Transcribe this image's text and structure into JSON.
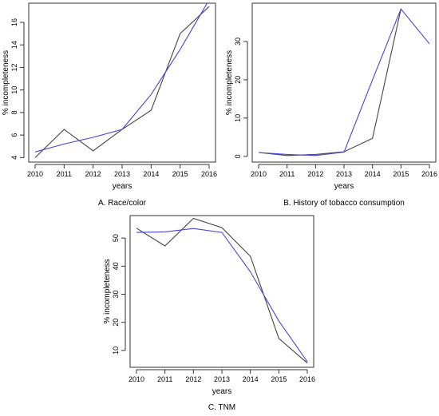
{
  "chart_data": [
    {
      "panel": "A",
      "type": "line",
      "caption": "A. Race/color",
      "xlabel": "years",
      "ylabel": "% incompleteness",
      "x": [
        2010,
        2011,
        2012,
        2013,
        2014,
        2015,
        2016
      ],
      "xticks": [
        "2010",
        "2011",
        "2012",
        "2013",
        "2014",
        "2015",
        "2016"
      ],
      "yticks": [
        "4",
        "6",
        "8",
        "10",
        "12",
        "14",
        "16"
      ],
      "ylim": [
        3.6,
        17.7
      ],
      "series": [
        {
          "color": "#444444",
          "values": [
            4.0,
            6.5,
            4.6,
            6.5,
            8.2,
            15.0,
            17.4
          ]
        },
        {
          "color": "#4444dd",
          "values": [
            4.5,
            5.2,
            5.8,
            6.5,
            9.6,
            13.6,
            18.0
          ]
        }
      ]
    },
    {
      "panel": "B",
      "type": "line",
      "caption": "B. History of tobacco consumption",
      "xlabel": "years",
      "ylabel": "% incompleteness",
      "x": [
        2010,
        2011,
        2012,
        2013,
        2014,
        2015,
        2016
      ],
      "xticks": [
        "2010",
        "2011",
        "2012",
        "2013",
        "2014",
        "2015",
        "2016"
      ],
      "yticks": [
        "0",
        "10",
        "20",
        "30"
      ],
      "ylim": [
        -1.5,
        40
      ],
      "series": [
        {
          "color": "#444444",
          "values": [
            1.0,
            0.2,
            0.5,
            1.2,
            4.7,
            38.5,
            null
          ]
        },
        {
          "color": "#4444dd",
          "values": [
            1.0,
            0.5,
            0.2,
            1.1,
            20.0,
            38.5,
            29.4
          ]
        }
      ]
    },
    {
      "panel": "C",
      "type": "line",
      "caption": "C. TNM",
      "xlabel": "years",
      "ylabel": "% incompleteness",
      "x": [
        2010,
        2011,
        2012,
        2013,
        2014,
        2015,
        2016
      ],
      "xticks": [
        "2010",
        "2011",
        "2012",
        "2013",
        "2014",
        "2015",
        "2016"
      ],
      "yticks": [
        "10",
        "20",
        "30",
        "40",
        "50"
      ],
      "ylim": [
        4,
        58
      ],
      "series": [
        {
          "color": "#444444",
          "values": [
            53.5,
            47.2,
            57.0,
            53.7,
            43.5,
            14.3,
            5.5
          ]
        },
        {
          "color": "#4444dd",
          "values": [
            52.0,
            52.2,
            53.4,
            52.0,
            38.0,
            20.5,
            6.0
          ]
        }
      ]
    }
  ]
}
